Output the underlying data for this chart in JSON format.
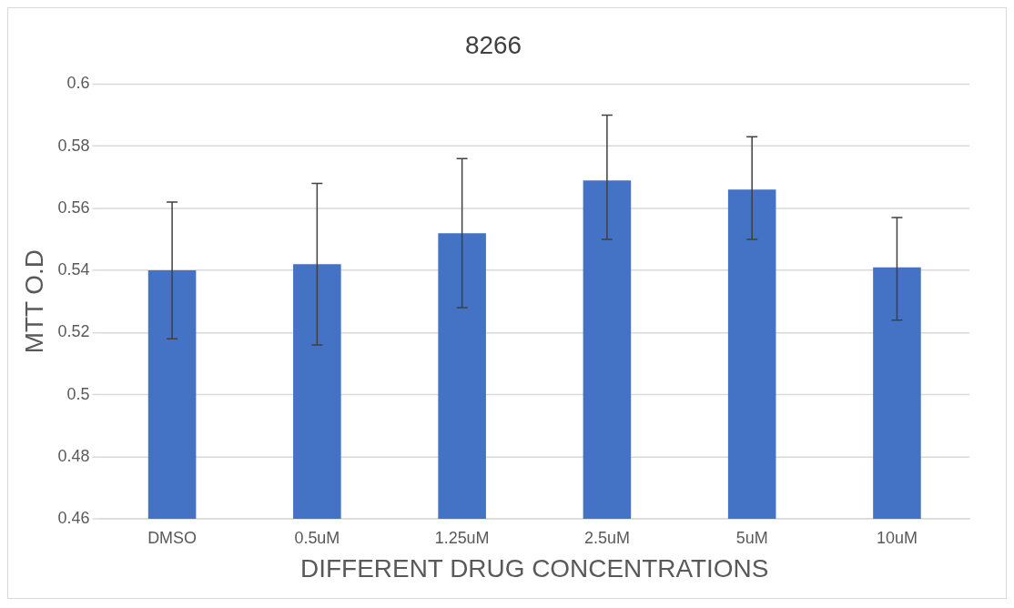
{
  "chart_data": {
    "type": "bar",
    "title": "8266",
    "xlabel": "DIFFERENT DRUG CONCENTRATIONS",
    "ylabel": "MTT O.D",
    "categories": [
      "DMSO",
      "0.5uM",
      "1.25uM",
      "2.5uM",
      "5uM",
      "10uM"
    ],
    "values": [
      0.54,
      0.542,
      0.552,
      0.569,
      0.566,
      0.541
    ],
    "errors": [
      [
        0.518,
        0.562
      ],
      [
        0.516,
        0.568
      ],
      [
        0.528,
        0.576
      ],
      [
        0.55,
        0.59
      ],
      [
        0.55,
        0.583
      ],
      [
        0.524,
        0.557
      ]
    ],
    "color": "#4472c4",
    "ylim": [
      0.46,
      0.6
    ],
    "yticks": [
      0.46,
      0.48,
      0.5,
      0.52,
      0.54,
      0.56,
      0.58,
      0.6
    ],
    "grid": "y",
    "legend": false
  }
}
